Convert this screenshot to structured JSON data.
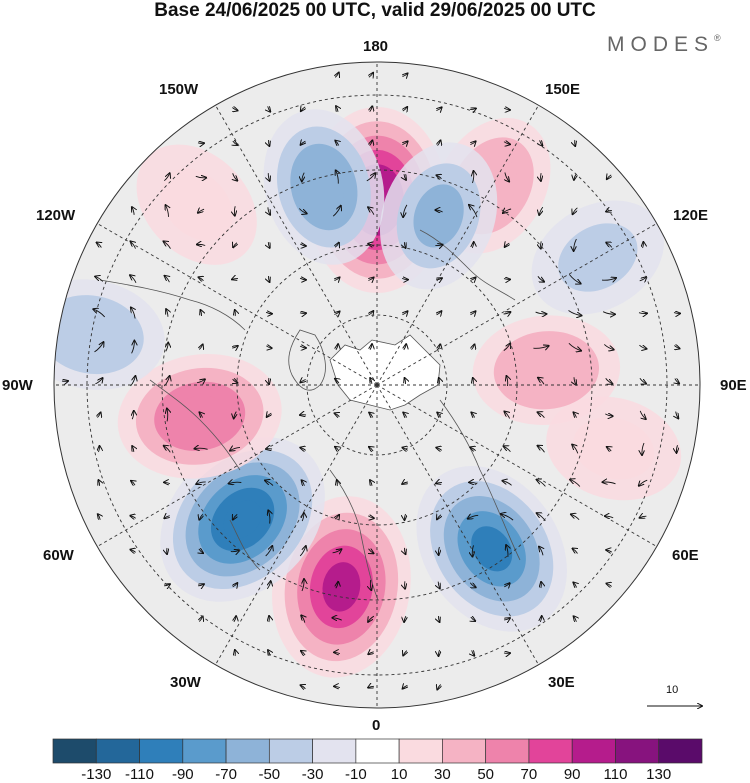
{
  "title": "Base 24/06/2025 00 UTC, valid 29/06/2025 00 UTC",
  "brand": "MODES",
  "brand_mark": "®",
  "longitude_labels": {
    "top": "180",
    "bottom": "0",
    "left": "90W",
    "right": "90E",
    "upper_left_1": "150W",
    "upper_left_2": "120W",
    "upper_right_1": "150E",
    "upper_right_2": "120E",
    "lower_left_1": "60W",
    "lower_left_2": "30W",
    "lower_right_1": "60E",
    "lower_right_2": "30E"
  },
  "reference_vector": {
    "label": "10"
  },
  "colorbar": {
    "ticks": [
      "-130",
      "-110",
      "-90",
      "-70",
      "-50",
      "-30",
      "-10",
      "10",
      "30",
      "50",
      "70",
      "90",
      "110",
      "130"
    ],
    "colors": [
      "#1d4b6b",
      "#23679a",
      "#2f7fba",
      "#5a9bcc",
      "#8eb3d8",
      "#bccde6",
      "#e3e3ef",
      "#ffffff",
      "#fadbe0",
      "#f5b3c4",
      "#ee83ab",
      "#e2449a",
      "#b51c8c",
      "#87137e",
      "#5a0b6a"
    ]
  },
  "anomaly_centers": [
    {
      "lon": "180",
      "sign": "positive",
      "value": 100
    },
    {
      "lon": "150E",
      "sign": "positive",
      "value": 40
    },
    {
      "lon": "165W",
      "sign": "negative",
      "value": -60
    },
    {
      "lon": "135W",
      "sign": "positive",
      "value": 30
    },
    {
      "lon": "160E",
      "sign": "negative",
      "value": -50
    },
    {
      "lon": "120E",
      "sign": "negative",
      "value": -35
    },
    {
      "lon": "95E",
      "sign": "positive",
      "value": 45
    },
    {
      "lon": "75E",
      "sign": "positive",
      "value": 30
    },
    {
      "lon": "35E",
      "sign": "negative",
      "value": -90
    },
    {
      "lon": "10W",
      "sign": "positive",
      "value": 95
    },
    {
      "lon": "45W",
      "sign": "negative",
      "value": -100
    },
    {
      "lon": "80W",
      "sign": "positive",
      "value": 70
    },
    {
      "lon": "100W",
      "sign": "negative",
      "value": -45
    }
  ]
}
